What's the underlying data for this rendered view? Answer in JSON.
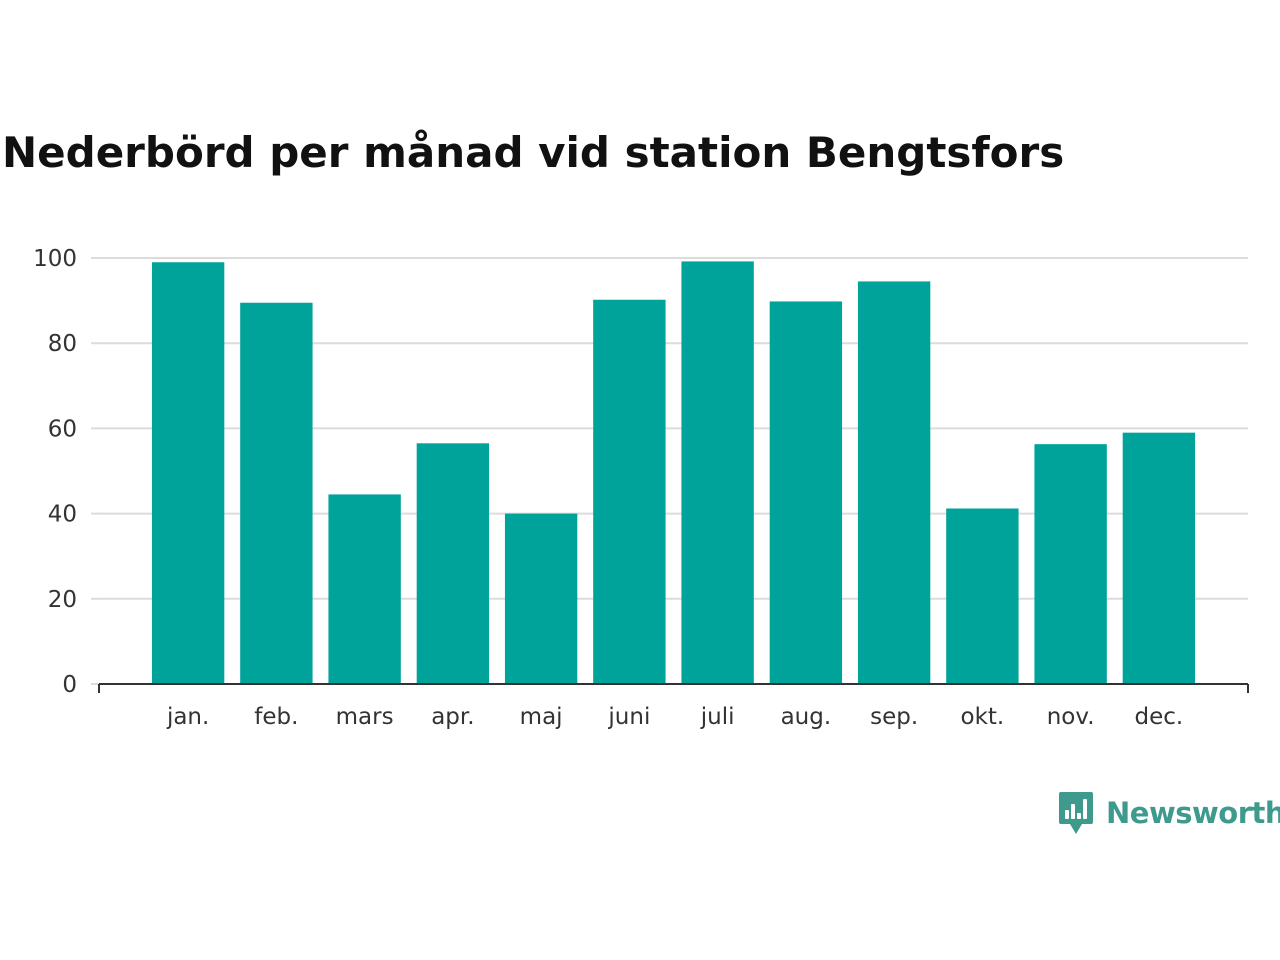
{
  "chart_data": {
    "type": "bar",
    "title": "Nederbörd per månad vid station Bengtsfors",
    "categories": [
      "jan.",
      "feb.",
      "mars",
      "apr.",
      "maj",
      "juni",
      "juli",
      "aug.",
      "sep.",
      "okt.",
      "nov.",
      "dec."
    ],
    "values": [
      99,
      89.5,
      44.5,
      56.5,
      40,
      90.2,
      99.2,
      89.8,
      94.5,
      41.2,
      56.3,
      59
    ],
    "ylim": [
      0,
      100
    ],
    "yticks": [
      0,
      20,
      40,
      60,
      80,
      100
    ],
    "xlabel": "",
    "ylabel": "",
    "grid": true,
    "bar_color": "#00a39a"
  },
  "brand": {
    "name": "Newsworthy",
    "icon": "newsworthy-logo-icon",
    "color": "#3d9a8c"
  }
}
